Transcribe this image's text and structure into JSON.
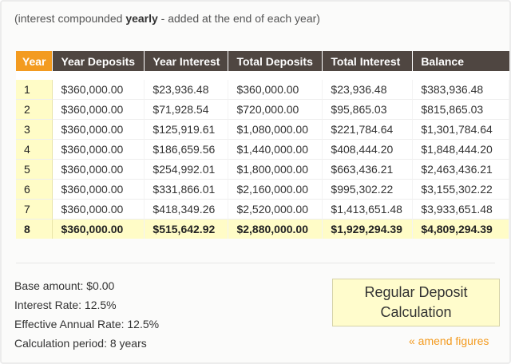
{
  "intro": {
    "prefix": "(interest compounded ",
    "emphasis": "yearly",
    "suffix": " - added at the end of each year)"
  },
  "table": {
    "headers": [
      "Year",
      "Year Deposits",
      "Year Interest",
      "Total Deposits",
      "Total Interest",
      "Balance"
    ],
    "rows": [
      [
        "1",
        "$360,000.00",
        "$23,936.48",
        "$360,000.00",
        "$23,936.48",
        "$383,936.48"
      ],
      [
        "2",
        "$360,000.00",
        "$71,928.54",
        "$720,000.00",
        "$95,865.03",
        "$815,865.03"
      ],
      [
        "3",
        "$360,000.00",
        "$125,919.61",
        "$1,080,000.00",
        "$221,784.64",
        "$1,301,784.64"
      ],
      [
        "4",
        "$360,000.00",
        "$186,659.56",
        "$1,440,000.00",
        "$408,444.20",
        "$1,848,444.20"
      ],
      [
        "5",
        "$360,000.00",
        "$254,992.01",
        "$1,800,000.00",
        "$663,436.21",
        "$2,463,436.21"
      ],
      [
        "6",
        "$360,000.00",
        "$331,866.01",
        "$2,160,000.00",
        "$995,302.22",
        "$3,155,302.22"
      ],
      [
        "7",
        "$360,000.00",
        "$418,349.26",
        "$2,520,000.00",
        "$1,413,651.48",
        "$3,933,651.48"
      ],
      [
        "8",
        "$360,000.00",
        "$515,642.92",
        "$2,880,000.00",
        "$1,929,294.39",
        "$4,809,294.39"
      ]
    ]
  },
  "summary": {
    "base_amount": "Base amount: $0.00",
    "interest_rate": "Interest Rate: 12.5%",
    "effective_rate": "Effective Annual Rate: 12.5%",
    "period": "Calculation period: 8 years"
  },
  "calc_box": {
    "line1": "Regular Deposit",
    "line2": "Calculation"
  },
  "amend_link": "« amend figures",
  "colors": {
    "header_bg": "#4f4641",
    "year_header_bg": "#f39b20",
    "highlight_bg": "#fffcc7",
    "link": "#f39b20"
  }
}
